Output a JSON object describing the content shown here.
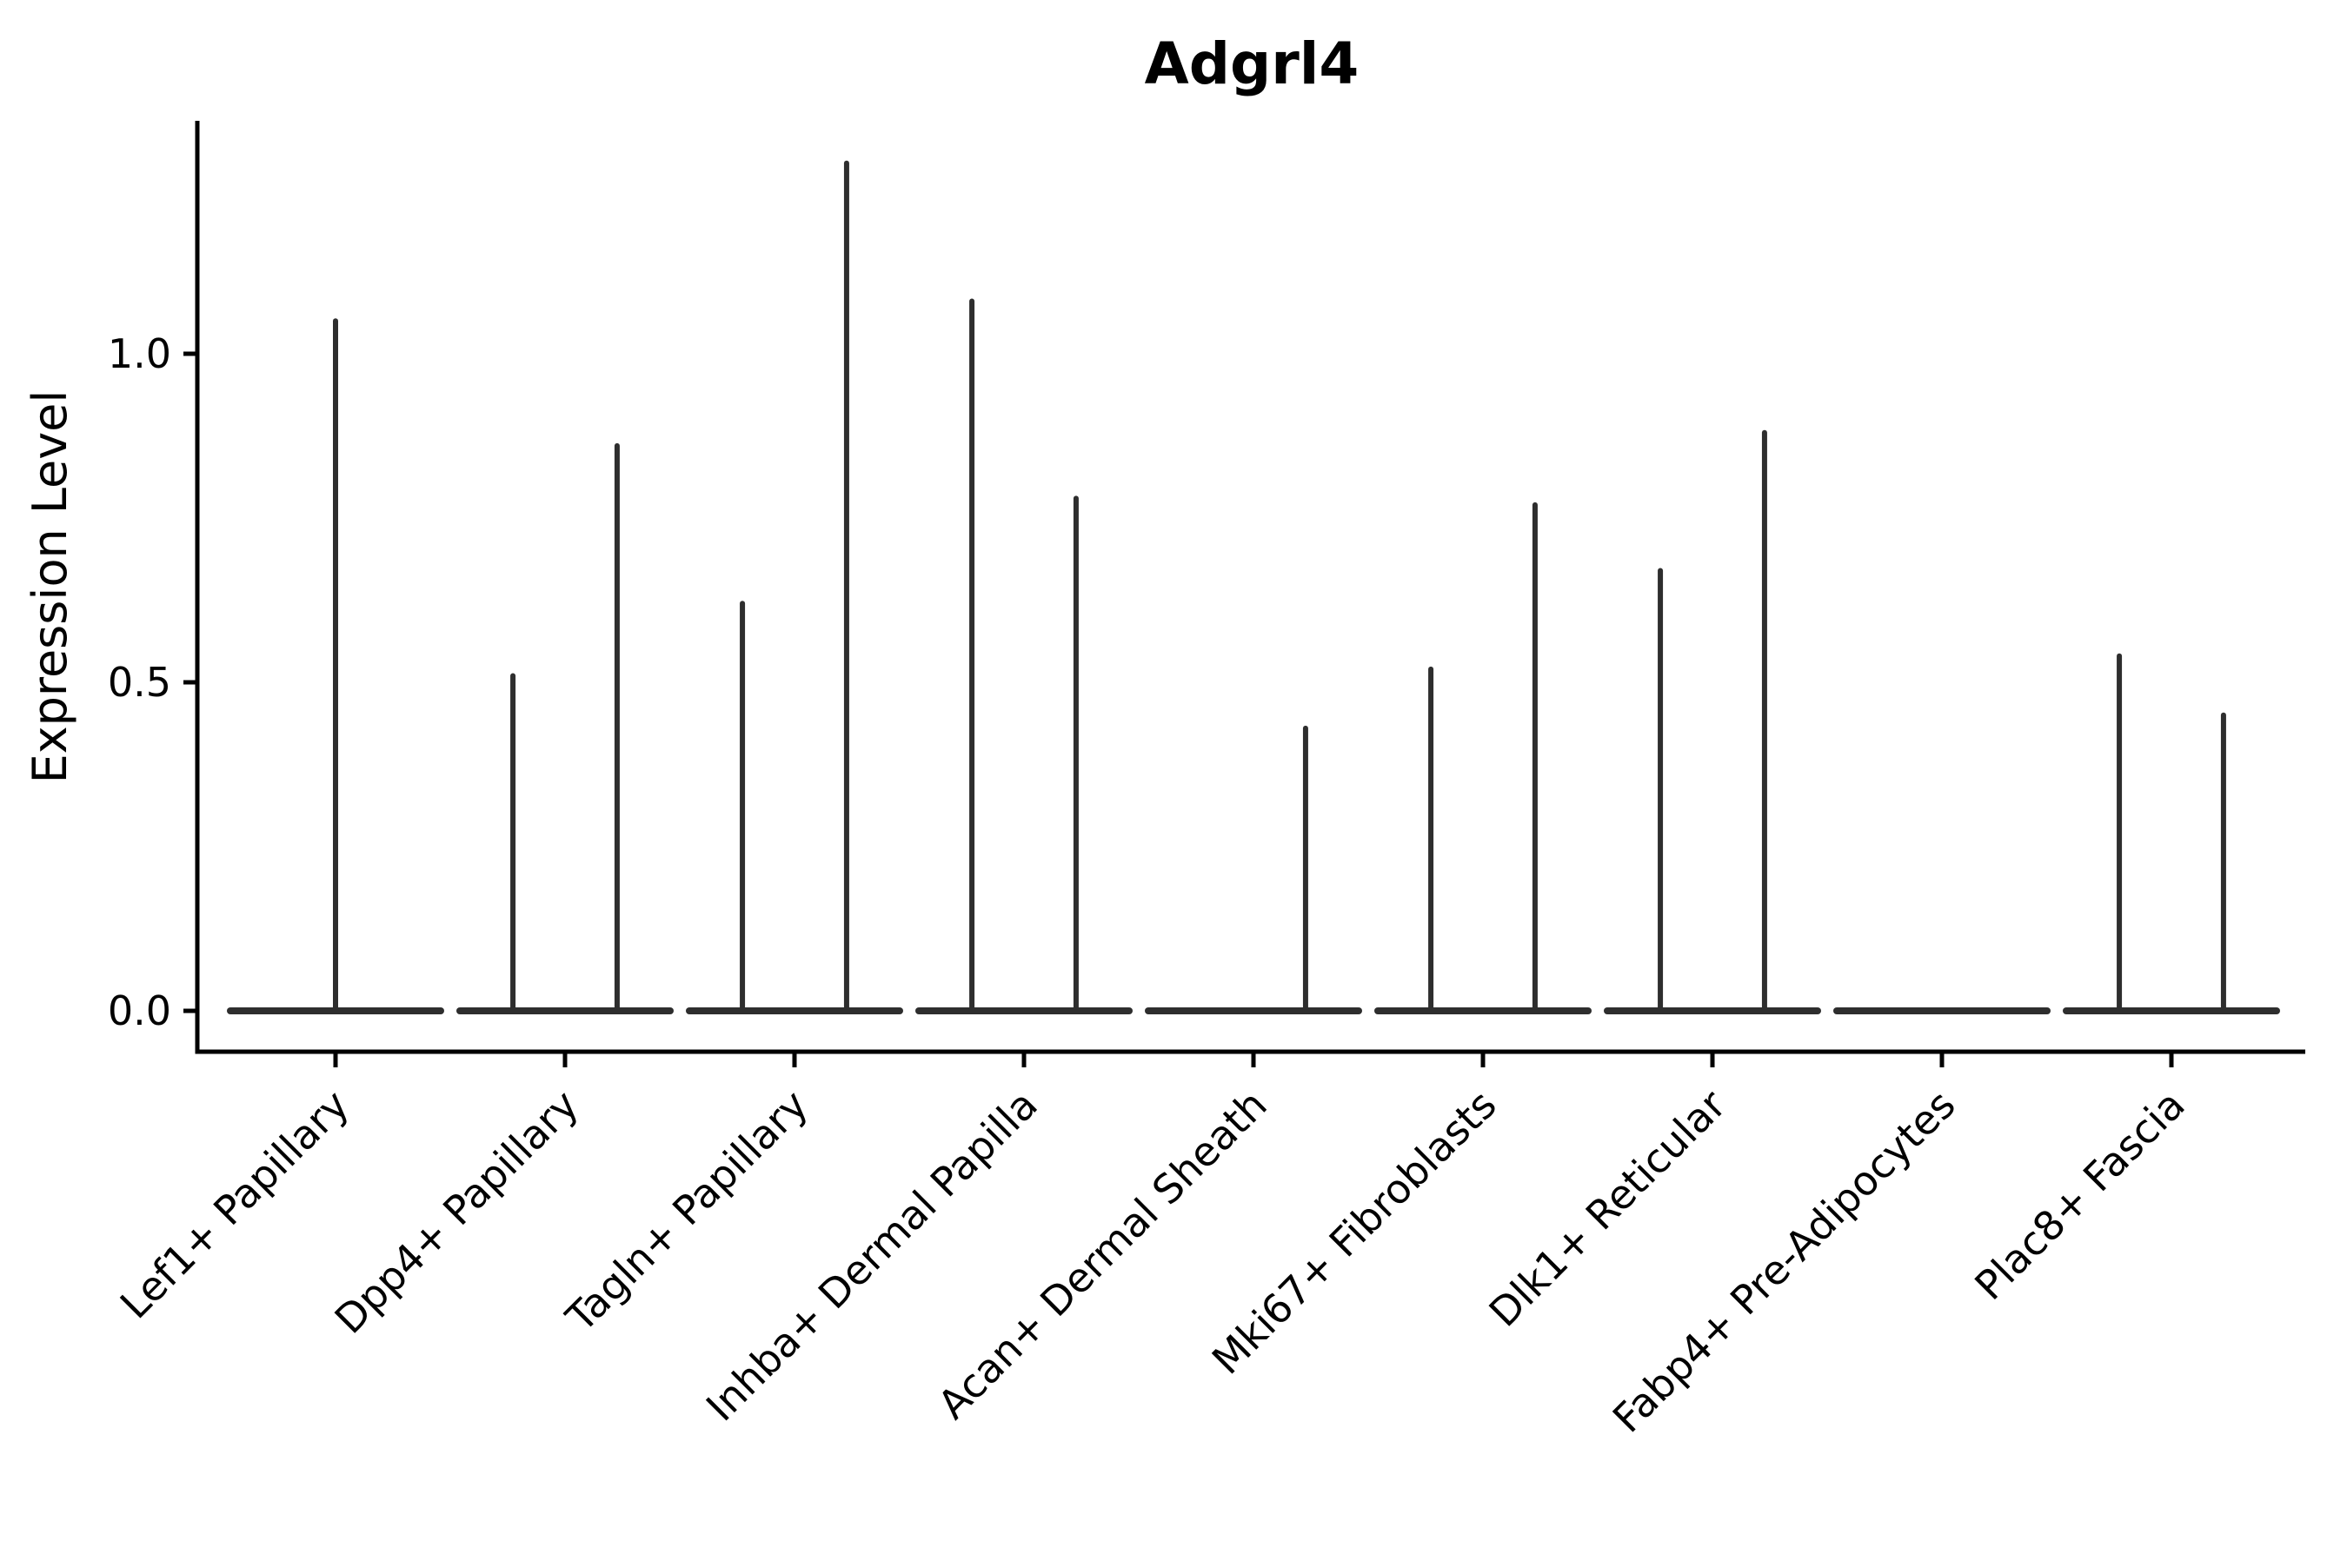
{
  "chart_data": {
    "type": "violin",
    "title": "Adgrl4",
    "xlabel": "",
    "ylabel": "Expression Level",
    "yticks": [
      "0.0",
      "0.5",
      "1.0"
    ],
    "ytick_values": [
      0.0,
      0.5,
      1.0
    ],
    "ylim": [
      -0.06,
      1.36
    ],
    "grid": false,
    "legend": "none",
    "description": "Violin plot of Adgrl4 expression per fibroblast cluster; each cluster shows a flat density base at 0 with thin spikes reaching the maximum expression of up to two dodged sub-violins (offset is in category-width units relative to the cluster center; max is the spike top in expression units).",
    "categories": [
      "Lef1+ Papillary",
      "Dpp4+ Papillary",
      "Tagln+ Papillary",
      "Inhba+ Dermal Papilla",
      "Acan+ Dermal Sheath",
      "Mki67+ Fibroblasts",
      "Dlk1+ Reticular",
      "Fabp4+ Pre-Adipocytes",
      "Plac8+ Fascia"
    ],
    "violins": [
      {
        "label": "Lef1+ Papillary",
        "baseline_value": 0,
        "spikes": [
          {
            "offset": 0.0,
            "max": 1.05
          }
        ]
      },
      {
        "label": "Dpp4+ Papillary",
        "baseline_value": 0,
        "spikes": [
          {
            "offset": -0.227,
            "max": 0.51
          },
          {
            "offset": 0.227,
            "max": 0.86
          }
        ]
      },
      {
        "label": "Tagln+ Papillary",
        "baseline_value": 0,
        "spikes": [
          {
            "offset": -0.227,
            "max": 0.62
          },
          {
            "offset": 0.227,
            "max": 1.29
          }
        ]
      },
      {
        "label": "Inhba+ Dermal Papilla",
        "baseline_value": 0,
        "spikes": [
          {
            "offset": -0.227,
            "max": 1.08
          },
          {
            "offset": 0.227,
            "max": 0.78
          }
        ]
      },
      {
        "label": "Acan+ Dermal Sheath",
        "baseline_value": 0,
        "spikes": [
          {
            "offset": 0.227,
            "max": 0.43
          }
        ]
      },
      {
        "label": "Mki67+ Fibroblasts",
        "baseline_value": 0,
        "spikes": [
          {
            "offset": -0.227,
            "max": 0.52
          },
          {
            "offset": 0.227,
            "max": 0.77
          }
        ]
      },
      {
        "label": "Dlk1+ Reticular",
        "baseline_value": 0,
        "spikes": [
          {
            "offset": -0.227,
            "max": 0.67
          },
          {
            "offset": 0.227,
            "max": 0.88
          }
        ]
      },
      {
        "label": "Fabp4+ Pre-Adipocytes",
        "baseline_value": 0,
        "spikes": []
      },
      {
        "label": "Plac8+ Fascia",
        "baseline_value": 0,
        "spikes": [
          {
            "offset": -0.227,
            "max": 0.54
          },
          {
            "offset": 0.227,
            "max": 0.45
          }
        ]
      }
    ],
    "colors": {
      "violin_line": "#2e2e2e",
      "axis": "#000000",
      "text": "#000000",
      "background": "#ffffff"
    }
  }
}
